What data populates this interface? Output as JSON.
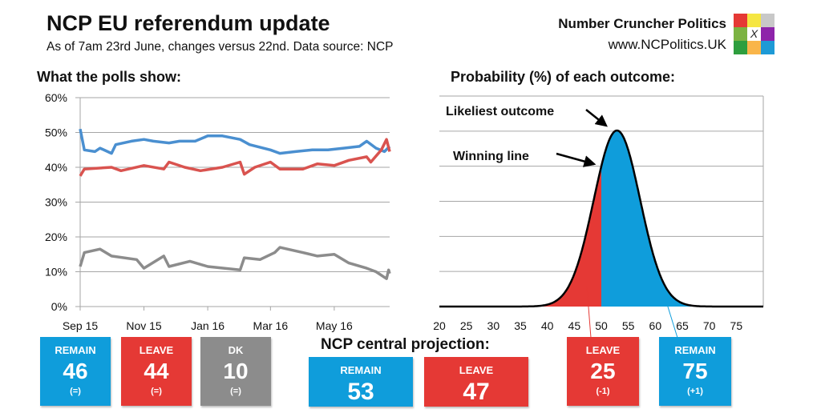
{
  "header": {
    "title": "NCP EU referendum update",
    "subtitle": "As of 7am 23rd June, changes versus 22nd. Data source: NCP",
    "brand": "Number Cruncher Politics",
    "url": "www.NCPolitics.UK",
    "logo_mark": "X",
    "logo_colors": [
      "#e53935",
      "#f5e642",
      "#c8c8c8",
      "#7cb342",
      "#ffffff",
      "#8e24aa",
      "#2e9e3e",
      "#f9b54a",
      "#1e9ad6"
    ]
  },
  "colors": {
    "remain": "#0f9ddb",
    "leave": "#e53935",
    "dk": "#8c8c8c",
    "remain_line": "#4a8fd0",
    "leave_line": "#d9534f",
    "dk_line": "#8c8c8c"
  },
  "chart_data": [
    {
      "type": "line",
      "title": "What the polls show:",
      "ylim": [
        0,
        60
      ],
      "yticks": [
        "0%",
        "10%",
        "20%",
        "30%",
        "40%",
        "50%",
        "60%"
      ],
      "xticks": [
        "Sep 15",
        "Nov 15",
        "Jan 16",
        "Mar 16",
        "May 16"
      ],
      "xtick_dates": [
        "2015-09-01",
        "2015-11-01",
        "2016-01-01",
        "2016-03-01",
        "2016-05-01"
      ],
      "xlim": [
        "2015-09-01",
        "2016-06-23"
      ],
      "grid": true,
      "series": [
        {
          "key": "remain",
          "points": [
            [
              "2015-09-01",
              51
            ],
            [
              "2015-09-05",
              45
            ],
            [
              "2015-09-15",
              44.5
            ],
            [
              "2015-09-20",
              45.5
            ],
            [
              "2015-10-01",
              44
            ],
            [
              "2015-10-05",
              46.5
            ],
            [
              "2015-10-20",
              47.5
            ],
            [
              "2015-11-01",
              48
            ],
            [
              "2015-11-10",
              47.5
            ],
            [
              "2015-11-25",
              47
            ],
            [
              "2015-12-05",
              47.5
            ],
            [
              "2015-12-20",
              47.5
            ],
            [
              "2016-01-01",
              49
            ],
            [
              "2016-01-15",
              49
            ],
            [
              "2016-02-01",
              48
            ],
            [
              "2016-02-10",
              46.5
            ],
            [
              "2016-03-01",
              45
            ],
            [
              "2016-03-10",
              44
            ],
            [
              "2016-03-25",
              44.5
            ],
            [
              "2016-04-10",
              45
            ],
            [
              "2016-04-25",
              45
            ],
            [
              "2016-05-10",
              45.5
            ],
            [
              "2016-05-25",
              46
            ],
            [
              "2016-06-01",
              47.5
            ],
            [
              "2016-06-10",
              45.5
            ],
            [
              "2016-06-18",
              44.5
            ],
            [
              "2016-06-23",
              46
            ]
          ]
        },
        {
          "key": "leave",
          "points": [
            [
              "2015-09-01",
              37.5
            ],
            [
              "2015-09-05",
              39.5
            ],
            [
              "2015-10-01",
              40
            ],
            [
              "2015-10-10",
              39
            ],
            [
              "2015-11-01",
              40.5
            ],
            [
              "2015-11-20",
              39.5
            ],
            [
              "2015-11-25",
              41.5
            ],
            [
              "2015-12-10",
              40
            ],
            [
              "2015-12-25",
              39
            ],
            [
              "2016-01-15",
              40
            ],
            [
              "2016-02-01",
              41.5
            ],
            [
              "2016-02-05",
              38
            ],
            [
              "2016-02-15",
              40
            ],
            [
              "2016-03-01",
              41.5
            ],
            [
              "2016-03-10",
              39.5
            ],
            [
              "2016-04-01",
              39.5
            ],
            [
              "2016-04-15",
              41
            ],
            [
              "2016-05-01",
              40.5
            ],
            [
              "2016-05-15",
              42
            ],
            [
              "2016-06-01",
              43
            ],
            [
              "2016-06-05",
              41.5
            ],
            [
              "2016-06-15",
              45
            ],
            [
              "2016-06-20",
              48
            ],
            [
              "2016-06-23",
              44.5
            ]
          ]
        },
        {
          "key": "dk",
          "points": [
            [
              "2015-09-01",
              11.5
            ],
            [
              "2015-09-05",
              15.5
            ],
            [
              "2015-09-20",
              16.5
            ],
            [
              "2015-10-01",
              14.5
            ],
            [
              "2015-10-25",
              13.5
            ],
            [
              "2015-11-01",
              11
            ],
            [
              "2015-11-20",
              14.5
            ],
            [
              "2015-11-25",
              11.5
            ],
            [
              "2015-12-15",
              13
            ],
            [
              "2016-01-01",
              11.5
            ],
            [
              "2016-02-01",
              10.5
            ],
            [
              "2016-02-05",
              14
            ],
            [
              "2016-02-20",
              13.5
            ],
            [
              "2016-03-05",
              15.5
            ],
            [
              "2016-03-10",
              17
            ],
            [
              "2016-04-01",
              15.5
            ],
            [
              "2016-04-15",
              14.5
            ],
            [
              "2016-05-01",
              15
            ],
            [
              "2016-05-15",
              12.5
            ],
            [
              "2016-06-01",
              11
            ],
            [
              "2016-06-10",
              10
            ],
            [
              "2016-06-20",
              8
            ],
            [
              "2016-06-22",
              10.5
            ],
            [
              "2016-06-23",
              9.5
            ]
          ]
        }
      ]
    },
    {
      "type": "area",
      "title": "Probability (%) of each outcome:",
      "xlim": [
        20,
        80
      ],
      "xticks": [
        "20",
        "25",
        "30",
        "35",
        "40",
        "45",
        "50",
        "55",
        "60",
        "65",
        "70",
        "75"
      ],
      "distribution": {
        "shape": "normal",
        "mean": 52.9,
        "sd": 4.3
      },
      "winning_line": 50,
      "grid": true,
      "annotations": [
        "Likeliest outcome",
        "Winning line"
      ]
    }
  ],
  "polls_boxes": [
    {
      "label": "REMAIN",
      "value": "46",
      "change": "(=)",
      "color": "#0f9ddb"
    },
    {
      "label": "LEAVE",
      "value": "44",
      "change": "(=)",
      "color": "#e53935"
    },
    {
      "label": "DK",
      "value": "10",
      "change": "(=)",
      "color": "#8c8c8c"
    }
  ],
  "projection": {
    "title": "NCP central projection:",
    "boxes": [
      {
        "label": "REMAIN",
        "value": "53",
        "color": "#0f9ddb"
      },
      {
        "label": "LEAVE",
        "value": "47",
        "color": "#e53935"
      }
    ]
  },
  "probability_boxes": [
    {
      "label": "LEAVE",
      "value": "25",
      "change": "(-1)",
      "color": "#e53935"
    },
    {
      "label": "REMAIN",
      "value": "75",
      "change": "(+1)",
      "color": "#0f9ddb"
    }
  ]
}
